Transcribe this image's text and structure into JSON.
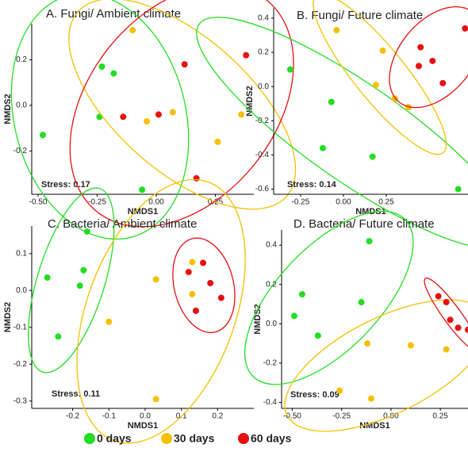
{
  "chart_data": [
    {
      "type": "scatter",
      "title": "A. Fungi/ Ambient climate",
      "x_label": "NMDS1",
      "y_label": "NMDS2",
      "annotation": "Stress: 0.17",
      "xlim": [
        -0.527,
        0.413
      ],
      "ylim": [
        -0.39,
        0.358
      ],
      "xticks": [
        {
          "value": -0.5,
          "label": "-0.50"
        },
        {
          "value": -0.25,
          "label": "-0.25"
        },
        {
          "value": 0,
          "label": "0.00"
        },
        {
          "value": 0.25,
          "label": "0.25"
        }
      ],
      "yticks": [
        -0.2,
        {
          "value": 0,
          "label": "0.0"
        },
        0.2
      ],
      "series": [
        {
          "name": "0 days",
          "color": "#22dd22",
          "x": [
            -0.23,
            -0.18,
            -0.24,
            -0.48,
            -0.06
          ],
          "y": [
            0.17,
            0.14,
            -0.05,
            -0.13,
            -0.37
          ]
        },
        {
          "name": "30 days",
          "color": "#f5c000",
          "x": [
            -0.1,
            -0.04,
            0.07,
            0.26,
            0.36
          ],
          "y": [
            0.33,
            -0.07,
            -0.03,
            -0.16,
            -0.04
          ]
        },
        {
          "name": "60 days",
          "color": "#e81010",
          "x": [
            0.12,
            0.38,
            -0.14,
            0.01,
            0.17
          ],
          "y": [
            0.18,
            0.22,
            -0.05,
            -0.04,
            -0.32
          ]
        }
      ]
    },
    {
      "type": "scatter",
      "title": "B. Fungi/ Future climate",
      "x_label": "NMDS1",
      "y_label": "NMDS2",
      "annotation": "Stress: 0.14",
      "xlim": [
        -0.407,
        0.727
      ],
      "ylim": [
        -0.63,
        0.46
      ],
      "xticks": [
        {
          "value": -0.25,
          "label": "-0.25"
        },
        {
          "value": 0,
          "label": "0.00"
        },
        {
          "value": 0.25,
          "label": "0.25"
        }
      ],
      "yticks": [
        -0.6,
        -0.4,
        -0.2,
        {
          "value": 0,
          "label": "0.0"
        },
        0.2,
        0.4
      ],
      "series": [
        {
          "name": "0 days",
          "color": "#22dd22",
          "x": [
            -0.31,
            -0.07,
            -0.12,
            0.17,
            0.67
          ],
          "y": [
            0.1,
            -0.09,
            -0.36,
            -0.41,
            -0.6
          ]
        },
        {
          "name": "30 days",
          "color": "#f5c000",
          "x": [
            -0.04,
            0.23,
            0.19,
            0.3,
            0.38
          ],
          "y": [
            0.33,
            0.21,
            0.01,
            -0.07,
            -0.12
          ]
        },
        {
          "name": "60 days",
          "color": "#e81010",
          "x": [
            0.71,
            0.45,
            0.52,
            0.44,
            0.58
          ],
          "y": [
            0.34,
            0.23,
            0.15,
            0.12,
            0.02
          ]
        }
      ]
    },
    {
      "type": "scatter",
      "title": "C. Bacteria/ Ambient climate",
      "x_label": "NMDS1",
      "y_label": "NMDS2",
      "annotation": "Stress: 0.11",
      "xlim": [
        -0.313,
        0.3
      ],
      "ylim": [
        -0.32,
        0.175
      ],
      "xticks": [
        -0.2,
        -0.1,
        {
          "value": 0,
          "label": "0.0"
        },
        0.1,
        0.2
      ],
      "yticks": [
        -0.3,
        -0.2,
        -0.1,
        {
          "value": 0,
          "label": "0.0"
        },
        0.1
      ],
      "series": [
        {
          "name": "0 days",
          "color": "#22dd22",
          "x": [
            -0.16,
            -0.27,
            -0.17,
            -0.18,
            -0.24
          ],
          "y": [
            0.16,
            0.035,
            0.055,
            0.013,
            -0.125
          ]
        },
        {
          "name": "30 days",
          "color": "#f5c000",
          "x": [
            0.03,
            -0.1,
            0.03,
            0.13,
            0.13
          ],
          "y": [
            0.03,
            -0.085,
            -0.295,
            0.077,
            -0.01
          ]
        },
        {
          "name": "60 days",
          "color": "#e81010",
          "x": [
            0.16,
            0.12,
            0.18,
            0.21,
            0.14
          ],
          "y": [
            0.075,
            0.05,
            0.02,
            -0.02,
            -0.055
          ]
        }
      ]
    },
    {
      "type": "scatter",
      "title": "D. Bacteria/ Future climate",
      "x_label": "NMDS1",
      "y_label": "NMDS2",
      "annotation": "Stress: 0.09",
      "xlim": [
        -0.554,
        0.39
      ],
      "ylim": [
        -0.43,
        0.477
      ],
      "xticks": [
        {
          "value": -0.5,
          "label": "-0.50"
        },
        {
          "value": -0.25,
          "label": "-0.25"
        },
        {
          "value": 0,
          "label": "0.00"
        },
        {
          "value": 0.25,
          "label": "0.25"
        }
      ],
      "yticks": [
        -0.4,
        -0.2,
        {
          "value": 0,
          "label": "0.0"
        },
        0.2,
        0.4
      ],
      "series": [
        {
          "name": "0 days",
          "color": "#22dd22",
          "x": [
            -0.11,
            -0.45,
            -0.49,
            -0.37,
            -0.15
          ],
          "y": [
            0.42,
            0.15,
            0.04,
            -0.06,
            0.11
          ]
        },
        {
          "name": "30 days",
          "color": "#f5c000",
          "x": [
            -0.12,
            0.1,
            0.28,
            -0.1,
            -0.26
          ],
          "y": [
            -0.1,
            -0.11,
            -0.13,
            -0.38,
            -0.34
          ]
        },
        {
          "name": "60 days",
          "color": "#e81010",
          "x": [
            0.24,
            0.28,
            0.3,
            0.34,
            0.39
          ],
          "y": [
            0.14,
            0.11,
            0.02,
            -0.02,
            -0.03
          ]
        }
      ]
    }
  ]
}
